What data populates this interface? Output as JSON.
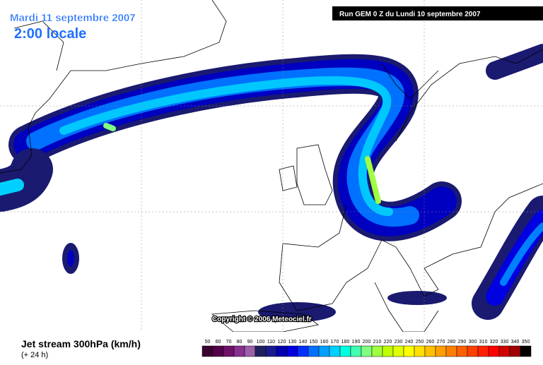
{
  "header": {
    "date": "Mardi 11 septembre 2007",
    "time": "2:00 locale"
  },
  "run": "Run GEM 0 Z du Lundi 10 septembre 2007",
  "copyright": "Copyright © 2006 Meteociel.fr",
  "footer": {
    "title": "Jet stream 300hPa (km/h)",
    "lead": "(+ 24 h)"
  },
  "legend": [
    {
      "value": 50,
      "color": "#3a0030"
    },
    {
      "value": 60,
      "color": "#55004a"
    },
    {
      "value": 70,
      "color": "#701068"
    },
    {
      "value": 80,
      "color": "#883090"
    },
    {
      "value": 90,
      "color": "#9a60a8"
    },
    {
      "value": 100,
      "color": "#202060"
    },
    {
      "value": 110,
      "color": "#1a1a90"
    },
    {
      "value": 120,
      "color": "#0000b0"
    },
    {
      "value": 130,
      "color": "#0000e0"
    },
    {
      "value": 140,
      "color": "#0030ff"
    },
    {
      "value": 150,
      "color": "#0070ff"
    },
    {
      "value": 160,
      "color": "#00a0ff"
    },
    {
      "value": 170,
      "color": "#00d0ff"
    },
    {
      "value": 180,
      "color": "#00ffe0"
    },
    {
      "value": 190,
      "color": "#40ffb0"
    },
    {
      "value": 200,
      "color": "#80ff80"
    },
    {
      "value": 210,
      "color": "#a0ff40"
    },
    {
      "value": 220,
      "color": "#c0ff00"
    },
    {
      "value": 230,
      "color": "#e0ff00"
    },
    {
      "value": 240,
      "color": "#ffff00"
    },
    {
      "value": 250,
      "color": "#ffe000"
    },
    {
      "value": 260,
      "color": "#ffc000"
    },
    {
      "value": 270,
      "color": "#ffa000"
    },
    {
      "value": 280,
      "color": "#ff8000"
    },
    {
      "value": 290,
      "color": "#ff6000"
    },
    {
      "value": 300,
      "color": "#ff4000"
    },
    {
      "value": 310,
      "color": "#ff2000"
    },
    {
      "value": 320,
      "color": "#ff0000"
    },
    {
      "value": 330,
      "color": "#d00000"
    },
    {
      "value": 340,
      "color": "#a00000"
    },
    {
      "value": 350,
      "color": "#000000"
    }
  ]
}
